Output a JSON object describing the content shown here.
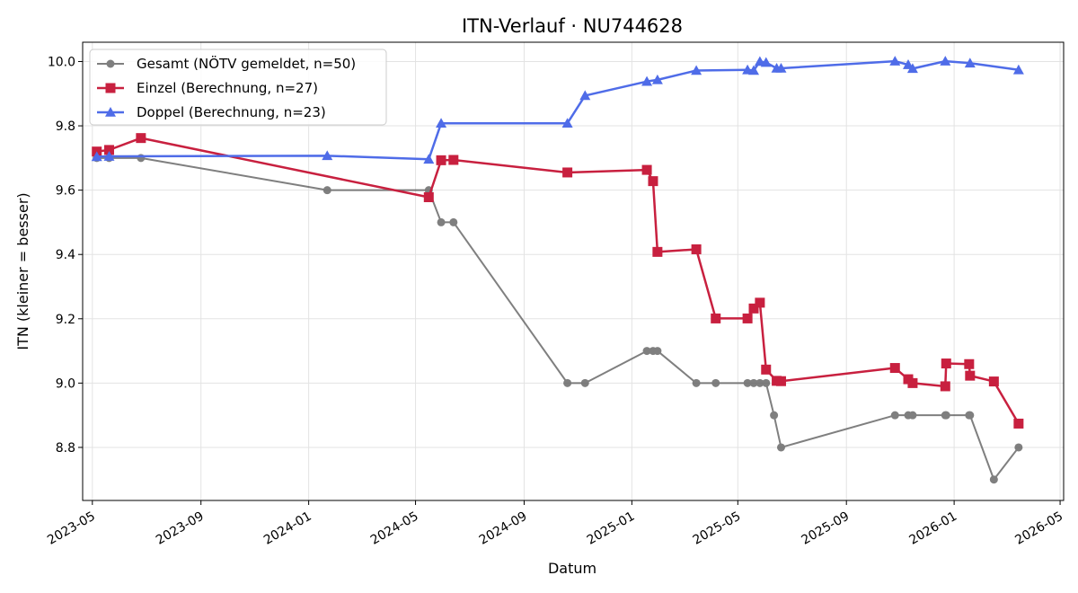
{
  "chart_data": {
    "type": "line",
    "title": "ITN-Verlauf · NU744628",
    "xlabel": "Datum",
    "ylabel": "ITN  (kleiner = besser)",
    "x_ticks": [
      "2023-05",
      "2023-09",
      "2024-01",
      "2024-05",
      "2024-09",
      "2025-01",
      "2025-05",
      "2025-09",
      "2026-01",
      "2026-05"
    ],
    "y_ticks": [
      "8.8",
      "9.0",
      "9.2",
      "9.4",
      "9.6",
      "9.8",
      "10.0"
    ],
    "xlim": [
      "2023-04-20",
      "2026-05-05"
    ],
    "ylim": [
      8.635,
      10.06
    ],
    "grid": true,
    "legend_position": "top-left",
    "series": [
      {
        "name": "Gesamt (NÖTV gemeldet, n=50)",
        "color": "#555555",
        "marker": "circle",
        "points": [
          {
            "x": "2023-05-06",
            "y": 9.7
          },
          {
            "x": "2023-05-20",
            "y": 9.7
          },
          {
            "x": "2023-06-25",
            "y": 9.7
          },
          {
            "x": "2024-01-22",
            "y": 9.6
          },
          {
            "x": "2024-05-16",
            "y": 9.6
          },
          {
            "x": "2024-05-30",
            "y": 9.5
          },
          {
            "x": "2024-06-13",
            "y": 9.5
          },
          {
            "x": "2024-10-20",
            "y": 9.0
          },
          {
            "x": "2024-11-09",
            "y": 9.0
          },
          {
            "x": "2025-01-18",
            "y": 9.1
          },
          {
            "x": "2025-01-25",
            "y": 9.1
          },
          {
            "x": "2025-01-30",
            "y": 9.1
          },
          {
            "x": "2025-03-15",
            "y": 9.0
          },
          {
            "x": "2025-04-06",
            "y": 9.0
          },
          {
            "x": "2025-05-12",
            "y": 9.0
          },
          {
            "x": "2025-05-19",
            "y": 9.0
          },
          {
            "x": "2025-05-26",
            "y": 9.0
          },
          {
            "x": "2025-06-02",
            "y": 9.0
          },
          {
            "x": "2025-06-11",
            "y": 8.9
          },
          {
            "x": "2025-06-19",
            "y": 8.8
          },
          {
            "x": "2025-10-26",
            "y": 8.9
          },
          {
            "x": "2025-11-10",
            "y": 8.9
          },
          {
            "x": "2025-11-15",
            "y": 8.9
          },
          {
            "x": "2025-12-22",
            "y": 8.9
          },
          {
            "x": "2025-12-23",
            "y": 8.9
          },
          {
            "x": "2026-01-18",
            "y": 8.9
          },
          {
            "x": "2026-01-19",
            "y": 8.9
          },
          {
            "x": "2026-02-15",
            "y": 8.7
          },
          {
            "x": "2026-03-15",
            "y": 8.8
          }
        ]
      },
      {
        "name": "Einzel (Berechnung, n=27)",
        "color": "#c8203f",
        "marker": "square",
        "points": [
          {
            "x": "2023-05-06",
            "y": 9.72
          },
          {
            "x": "2023-05-20",
            "y": 9.725
          },
          {
            "x": "2023-06-25",
            "y": 9.762
          },
          {
            "x": "2024-05-16",
            "y": 9.578
          },
          {
            "x": "2024-05-30",
            "y": 9.693
          },
          {
            "x": "2024-06-13",
            "y": 9.694
          },
          {
            "x": "2024-10-20",
            "y": 9.655
          },
          {
            "x": "2025-01-18",
            "y": 9.663
          },
          {
            "x": "2025-01-25",
            "y": 9.628
          },
          {
            "x": "2025-01-30",
            "y": 9.408
          },
          {
            "x": "2025-03-15",
            "y": 9.416
          },
          {
            "x": "2025-04-06",
            "y": 9.201
          },
          {
            "x": "2025-05-12",
            "y": 9.201
          },
          {
            "x": "2025-05-19",
            "y": 9.232
          },
          {
            "x": "2025-05-26",
            "y": 9.25
          },
          {
            "x": "2025-06-02",
            "y": 9.042
          },
          {
            "x": "2025-06-14",
            "y": 9.007
          },
          {
            "x": "2025-06-19",
            "y": 9.006
          },
          {
            "x": "2025-10-26",
            "y": 9.047
          },
          {
            "x": "2025-11-10",
            "y": 9.012
          },
          {
            "x": "2025-11-15",
            "y": 9.0
          },
          {
            "x": "2025-12-22",
            "y": 8.99
          },
          {
            "x": "2025-12-23",
            "y": 9.061
          },
          {
            "x": "2026-01-18",
            "y": 9.059
          },
          {
            "x": "2026-01-19",
            "y": 9.023
          },
          {
            "x": "2026-02-15",
            "y": 9.005
          },
          {
            "x": "2026-03-15",
            "y": 8.874
          }
        ]
      },
      {
        "name": "Doppel (Berechnung, n=23)",
        "color": "#4f6ce8",
        "marker": "triangle",
        "points": [
          {
            "x": "2023-05-06",
            "y": 9.704
          },
          {
            "x": "2023-05-20",
            "y": 9.705
          },
          {
            "x": "2024-01-22",
            "y": 9.707
          },
          {
            "x": "2024-05-16",
            "y": 9.696
          },
          {
            "x": "2024-05-30",
            "y": 9.808
          },
          {
            "x": "2024-10-20",
            "y": 9.808
          },
          {
            "x": "2024-11-09",
            "y": 9.894
          },
          {
            "x": "2025-01-18",
            "y": 9.938
          },
          {
            "x": "2025-01-30",
            "y": 9.943
          },
          {
            "x": "2025-03-15",
            "y": 9.972
          },
          {
            "x": "2025-05-12",
            "y": 9.974
          },
          {
            "x": "2025-05-19",
            "y": 9.972
          },
          {
            "x": "2025-05-26",
            "y": 10.0
          },
          {
            "x": "2025-06-02",
            "y": 9.997
          },
          {
            "x": "2025-06-14",
            "y": 9.979
          },
          {
            "x": "2025-06-19",
            "y": 9.979
          },
          {
            "x": "2025-10-26",
            "y": 10.001
          },
          {
            "x": "2025-11-10",
            "y": 9.99
          },
          {
            "x": "2025-11-15",
            "y": 9.978
          },
          {
            "x": "2025-12-22",
            "y": 10.001
          },
          {
            "x": "2026-01-19",
            "y": 9.995
          },
          {
            "x": "2026-03-15",
            "y": 9.974
          }
        ]
      }
    ]
  }
}
